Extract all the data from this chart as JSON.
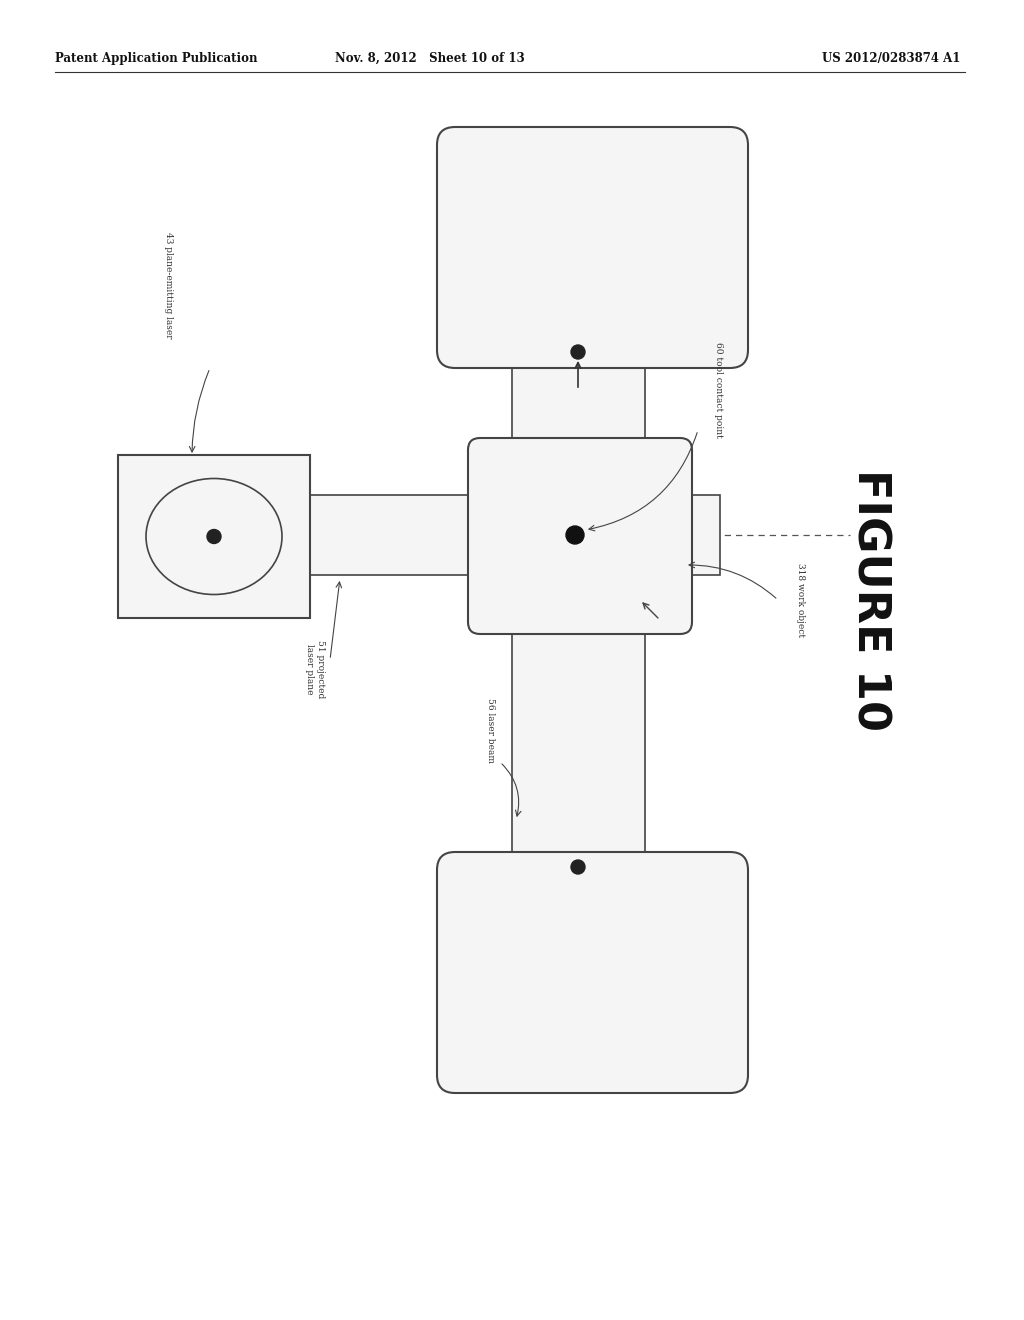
{
  "header_left": "Patent Application Publication",
  "header_mid": "Nov. 8, 2012   Sheet 10 of 13",
  "header_right": "US 2012/0283874 A1",
  "figure_label": "FIGURE 10",
  "bg_color": "#ffffff",
  "border_color": "#444444",
  "fill_white": "#ffffff",
  "fill_light": "#f5f5f5",
  "fill_med": "#e8e8e8",
  "labels": {
    "laser_emitter": "43 plane-emitting laser",
    "projected_plane": "51 projected\nlaser plane",
    "laser_beam": "56 laser beam",
    "tool_contact": "60 tool contact point",
    "work_object": "318 work object"
  }
}
